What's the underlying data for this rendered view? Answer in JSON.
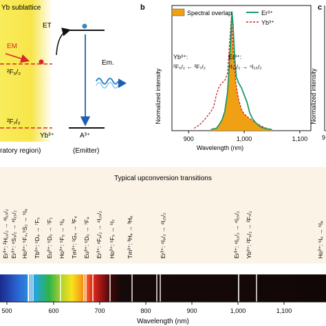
{
  "panel_a": {
    "header": "Yb sublattice",
    "em_label": "EM",
    "level_upper": "²F₅/₂",
    "level_lower": "²F₇/₂",
    "donor_label": "Yb³⁺",
    "region_label": "ratory region)",
    "et_label": "ET",
    "em_emission_label": "Em.",
    "acceptor_label": "A³⁺",
    "emitter_label": "(Emitter)",
    "colors": {
      "region": "#f7e54a",
      "em_arrow": "#d8262b",
      "em_glow": "#2f86c8",
      "level": "#111111"
    }
  },
  "panel_b_letter": "b",
  "panel_c_letter": "c",
  "panel_c_ylabel": "Normalized intensity",
  "panel_c_tick": "9",
  "spectrum_transitions": {
    "title": "Typical upconversion transitions",
    "xlabel": "Wavelength (nm)",
    "x_ticks": [
      "500",
      "600",
      "700",
      "800",
      "900",
      "1,000",
      "1,100"
    ],
    "labels": [
      {
        "ion": "Er³⁺:",
        "transition": "²H₁₁/₂ → ⁴I₁₅/₂"
      },
      {
        "ion": "Er³⁺:",
        "transition": "⁴S₃/₂ → ⁴I₁₅/₂"
      },
      {
        "ion": "Ho³⁺:",
        "transition": "⁵F₄,⁵S₂ → ⁵I₈"
      },
      {
        "ion": "Tb³⁺:",
        "transition": "⁵D₄ → ⁷F₅"
      },
      {
        "ion": "Eu³⁺:",
        "transition": "⁵D₀ → ⁷F₁"
      },
      {
        "ion": "Ho³⁺:",
        "transition": "⁵F₅ → ⁵I₈"
      },
      {
        "ion": "Tm³⁺:",
        "transition": "¹G₄ → ³F₄"
      },
      {
        "ion": "Eu³⁺:",
        "transition": "⁵D₀ → ⁷F₄"
      },
      {
        "ion": "Er³⁺:",
        "transition": "⁴F₉/₂ → ⁴I₁₅/₂"
      },
      {
        "ion": "Ho³⁺:",
        "transition": "⁵F₅ → ⁵I₇"
      },
      {
        "ion": "Tm³⁺:",
        "transition": "³H₄ → ³H₆"
      },
      {
        "ion": "Er³⁺:",
        "transition": "⁴I₉/₂ → ⁴I₁₅/₂"
      },
      {
        "ion": "Er³⁺:",
        "transition": "⁴I₁₁/₂ → ⁴I₁₅/₂"
      },
      {
        "ion": "Yb³⁺:",
        "transition": "²F₅/₂ → ²F₇/₂"
      },
      {
        "ion": "Ho³⁺:",
        "transition": "⁵I₆ → ⁵I₈"
      }
    ]
  },
  "chart_data": [
    {
      "type": "area",
      "xlabel": "Wavelength (nm)",
      "ylabel": "Normalized intensity",
      "xlim": [
        870,
        1120
      ],
      "ylim": [
        0,
        1.05
      ],
      "x_ticks": [
        "900",
        "1,000",
        "1,100"
      ],
      "legend_position": "top-right",
      "legend": [
        "Spectral overlap",
        "Er³⁺",
        "Yb³⁺"
      ],
      "annotations": [
        {
          "text": "Yb³⁺:",
          "sub": "²F₅/₂ ← ²F₇/₂"
        },
        {
          "text": "Er³⁺:",
          "sub": "⁴I₁₁/₂ → ⁴I₁₅/₂"
        }
      ],
      "colors": {
        "overlap": "#f0a013",
        "er": "#1a9a62",
        "yb": "#c8202a"
      },
      "series": [
        {
          "name": "Er³⁺",
          "x": [
            940,
            950,
            955,
            960,
            965,
            970,
            975,
            978,
            980,
            983,
            986,
            990,
            995,
            1000,
            1005,
            1010,
            1015,
            1020,
            1025,
            1030,
            1040,
            1050
          ],
          "y": [
            0.01,
            0.02,
            0.05,
            0.09,
            0.16,
            0.32,
            0.68,
            1.0,
            0.88,
            0.6,
            0.45,
            0.4,
            0.36,
            0.3,
            0.24,
            0.15,
            0.1,
            0.07,
            0.05,
            0.03,
            0.015,
            0.01
          ]
        },
        {
          "name": "Yb³⁺",
          "x": [
            910,
            920,
            930,
            940,
            945,
            950,
            955,
            960,
            965,
            970,
            975,
            977,
            980,
            985,
            990,
            995,
            1000,
            1005,
            1010,
            1020,
            1030,
            1040,
            1050
          ],
          "y": [
            0.02,
            0.05,
            0.1,
            0.16,
            0.2,
            0.3,
            0.37,
            0.4,
            0.42,
            0.48,
            0.82,
            0.96,
            0.68,
            0.4,
            0.26,
            0.18,
            0.14,
            0.12,
            0.1,
            0.07,
            0.04,
            0.02,
            0.01
          ]
        }
      ]
    }
  ]
}
